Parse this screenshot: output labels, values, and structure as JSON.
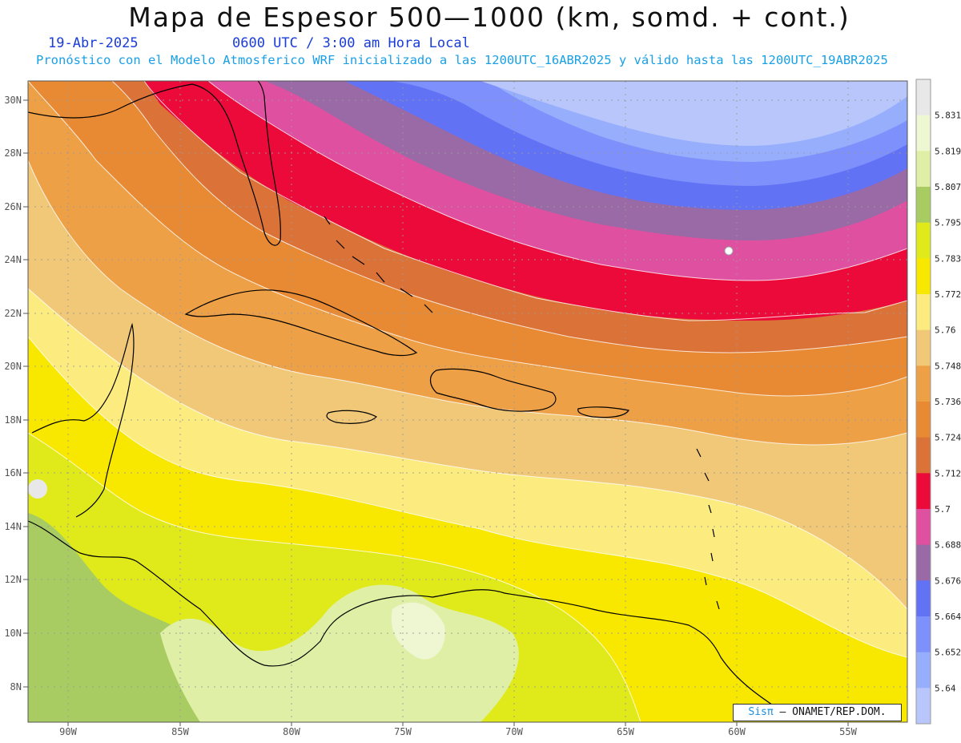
{
  "header": {
    "title": "Mapa de Espesor 500—1000 (km, somd. + cont.)",
    "date": "19-Abr-2025",
    "time": "0600 UTC / 3:00 am Hora Local",
    "model_note": "Pronóstico con el Modelo Atmosferico WRF inicializado a las 1200UTC_16ABR2025 y válido hasta las  1200UTC_19ABR2025"
  },
  "axes": {
    "lat_labels": [
      "30N",
      "28N",
      "26N",
      "24N",
      "22N",
      "20N",
      "18N",
      "16N",
      "14N",
      "12N",
      "10N",
      "8N"
    ],
    "lon_labels": [
      "90W",
      "85W",
      "80W",
      "75W",
      "70W",
      "65W",
      "60W",
      "55W"
    ]
  },
  "colorbar": {
    "levels": [
      "5.831",
      "5.819",
      "5.807",
      "5.795",
      "5.783",
      "5.772",
      "5.76",
      "5.748",
      "5.736",
      "5.724",
      "5.712",
      "5.7",
      "5.688",
      "5.676",
      "5.664",
      "5.652",
      "5.64"
    ],
    "colors": [
      "#e8e8e8",
      "#eef6d2",
      "#dff0a6",
      "#a8cc62",
      "#e0ea1a",
      "#f8e800",
      "#fcec80",
      "#f0c878",
      "#eda046",
      "#e88a34",
      "#db7238",
      "#ec0a3a",
      "#e050a0",
      "#9a6aa6",
      "#6272f4",
      "#7d90fc",
      "#96aefc",
      "#b8c6fc"
    ],
    "unit": "km"
  },
  "credit": {
    "brand": "Sisπ",
    "text": "– ONAMET/REP.DOM."
  }
}
